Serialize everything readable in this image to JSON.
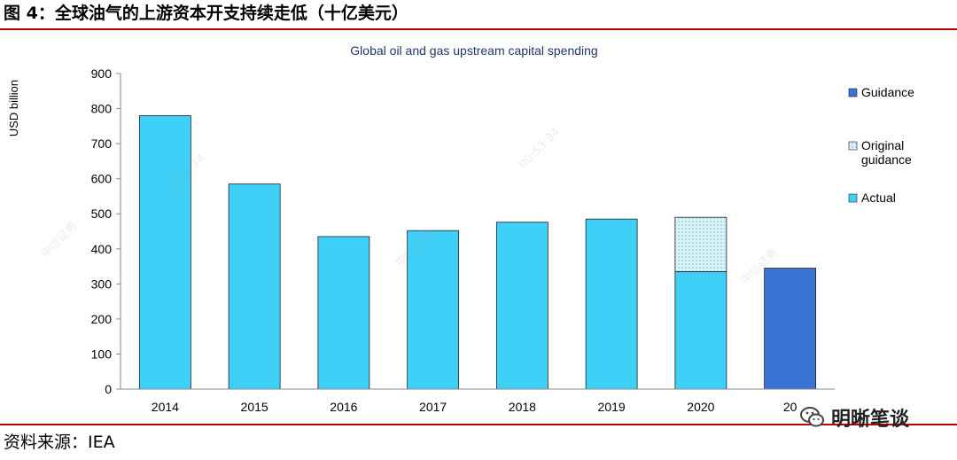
{
  "figure": {
    "title": "图 4：全球油气的上游资本开支持续走低（十亿美元）",
    "source": "资料来源：IEA"
  },
  "brand": {
    "label": "明晰笔谈",
    "icon": "wechat-icon"
  },
  "watermarks": [
    "中信证券",
    "00:53:34",
    "中信证券",
    "00:53:34",
    "中信证券"
  ],
  "colors": {
    "actual": "#3fd0f7",
    "guidance": "#3b73d3",
    "original_guidance": "#d8f3fa",
    "rule": "#c00000",
    "title": "#1f3864"
  },
  "chart_data": {
    "type": "bar",
    "title": "Global oil and gas upstream capital spending",
    "ylabel": "USD billion",
    "xlabel": "",
    "ylim": [
      0,
      900
    ],
    "yticks": [
      0,
      100,
      200,
      300,
      400,
      500,
      600,
      700,
      800,
      900
    ],
    "categories": [
      "2014",
      "2015",
      "2016",
      "2017",
      "2018",
      "2019",
      "2020",
      "2021"
    ],
    "category_labels": [
      "2014",
      "2015",
      "2016",
      "2017",
      "2018",
      "2019",
      "2020",
      "20"
    ],
    "stacked": true,
    "grid": false,
    "legend": {
      "position": "right",
      "order": [
        "Guidance",
        "Original guidance",
        "Actual"
      ]
    },
    "series": [
      {
        "name": "Actual",
        "color": "#3fd0f7",
        "values": [
          780,
          585,
          435,
          452,
          476,
          485,
          335,
          null
        ]
      },
      {
        "name": "Original guidance",
        "color": "#d8f3fa",
        "pattern": "dotted",
        "values": [
          null,
          null,
          null,
          null,
          null,
          null,
          155,
          null
        ]
      },
      {
        "name": "Guidance",
        "color": "#3b73d3",
        "values": [
          null,
          null,
          null,
          null,
          null,
          null,
          null,
          345
        ]
      }
    ]
  }
}
